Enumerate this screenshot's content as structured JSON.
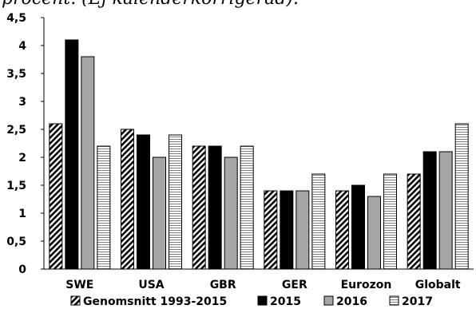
{
  "caption": "procent. (Ej kalenderkorrigerad).",
  "chart_data": {
    "type": "bar",
    "categories": [
      "SWE",
      "USA",
      "GBR",
      "GER",
      "Eurozon",
      "Globalt"
    ],
    "series": [
      {
        "name": "Genomsnitt 1993-2015",
        "pattern": "diagonal-hatch",
        "fill": "#ffffff",
        "stroke": "#000000",
        "values": [
          2.6,
          2.5,
          2.2,
          1.4,
          1.4,
          1.7
        ]
      },
      {
        "name": "2015",
        "pattern": "solid",
        "fill": "#000000",
        "stroke": "#000000",
        "values": [
          4.1,
          2.4,
          2.2,
          1.4,
          1.5,
          2.1
        ]
      },
      {
        "name": "2016",
        "pattern": "solid",
        "fill": "#a6a6a6",
        "stroke": "#000000",
        "values": [
          3.8,
          2.0,
          2.0,
          1.4,
          1.3,
          2.1
        ]
      },
      {
        "name": "2017",
        "pattern": "horizontal-lines",
        "fill": "#ffffff",
        "stroke": "#000000",
        "values": [
          2.2,
          2.4,
          2.2,
          1.7,
          1.7,
          2.6
        ]
      }
    ],
    "yticks": [
      "0",
      "0,5",
      "1",
      "1,5",
      "2",
      "2,5",
      "3",
      "3,5",
      "4",
      "4,5"
    ],
    "ylim": [
      0,
      4.5
    ],
    "grid": false,
    "legend_position": "bottom",
    "title": "",
    "xlabel": "",
    "ylabel": ""
  }
}
